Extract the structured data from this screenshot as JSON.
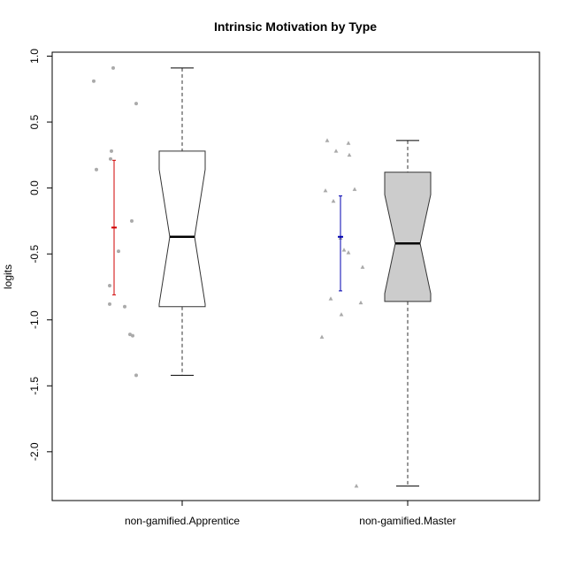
{
  "chart_data": {
    "type": "boxplot",
    "title": "Intrinsic Motivation by Type",
    "xlabel": "",
    "ylabel": "logits",
    "ylim": [
      -2.37,
      1.03
    ],
    "yticks": [
      1.0,
      0.5,
      0.0,
      -0.5,
      -1.0,
      -1.5,
      -2.0
    ],
    "ytick_labels": [
      "1.0",
      "0.5",
      "0.0",
      "-0.5",
      "-1.0",
      "-1.5",
      "-2.0"
    ],
    "grid": false,
    "categories": [
      "non-gamified.Apprentice",
      "non-gamified.Master"
    ],
    "boxes": [
      {
        "category": "non-gamified.Apprentice",
        "fill": "#ffffff",
        "whisker_low": -1.42,
        "q1": -0.9,
        "median": -0.37,
        "q3": 0.28,
        "whisker_high": 0.91,
        "notch_low": -0.88,
        "notch_high": 0.14,
        "mean": -0.3,
        "mean_ci": [
          -0.81,
          0.21
        ],
        "mean_color": "#d00000",
        "point_marker": "circle",
        "points": [
          0.81,
          0.91,
          0.64,
          0.28,
          0.22,
          0.14,
          -0.25,
          -0.48,
          -0.74,
          -0.88,
          -0.9,
          -1.11,
          -1.12,
          -1.42
        ]
      },
      {
        "category": "non-gamified.Master",
        "fill": "#cccccc",
        "whisker_low": -2.26,
        "q1": -0.86,
        "median": -0.42,
        "q3": 0.12,
        "whisker_high": 0.36,
        "notch_low": -0.8,
        "notch_high": -0.05,
        "mean": -0.37,
        "mean_ci": [
          -0.78,
          -0.06
        ],
        "mean_color": "#0000b0",
        "point_marker": "triangle",
        "points": [
          0.36,
          0.34,
          0.28,
          0.25,
          -0.02,
          -0.01,
          -0.1,
          -0.38,
          -0.47,
          -0.49,
          -0.6,
          -0.84,
          -0.87,
          -0.96,
          -1.13,
          -2.26
        ]
      }
    ],
    "colors": {
      "points": "#aaaaaa",
      "box_stroke": "#333333",
      "whisker": "#555555",
      "median": "#000000"
    }
  }
}
